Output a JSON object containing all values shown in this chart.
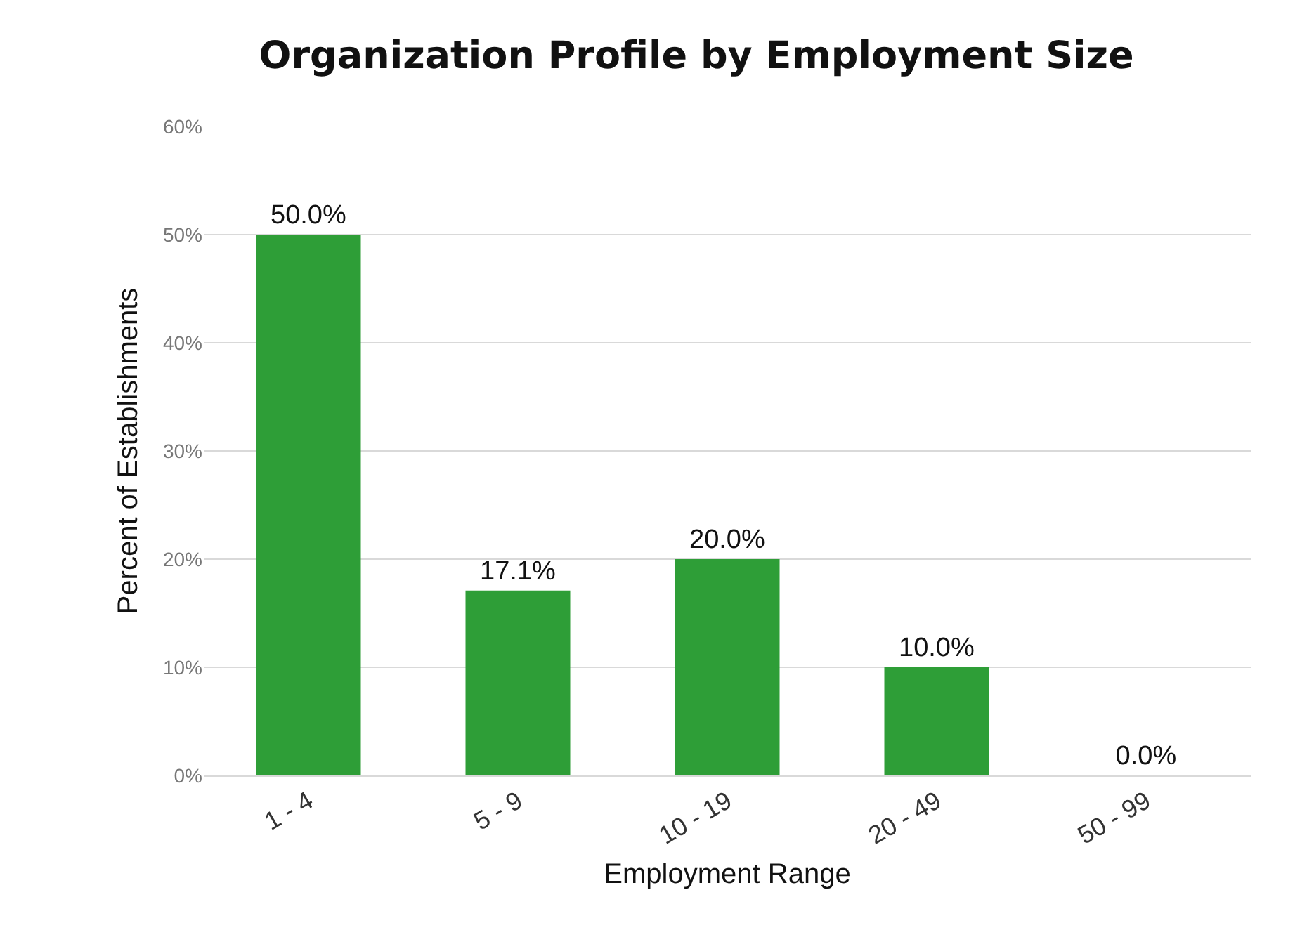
{
  "chart_data": {
    "type": "bar",
    "title": "Organization Profile by Employment Size",
    "xlabel": "Employment Range",
    "ylabel": "Percent of Establishments",
    "categories": [
      "1 - 4",
      "5 - 9",
      "10 - 19",
      "20 - 49",
      "50 - 99"
    ],
    "values": [
      50.0,
      17.1,
      20.0,
      10.0,
      0.0
    ],
    "value_labels": [
      "50.0%",
      "17.1%",
      "20.0%",
      "10.0%",
      "0.0%"
    ],
    "color": "#2e9e37",
    "ylim": [
      0,
      60
    ],
    "yticks": [
      {
        "value": 0,
        "label": "0%"
      },
      {
        "value": 10,
        "label": "10%"
      },
      {
        "value": 20,
        "label": "20%"
      },
      {
        "value": 30,
        "label": "30%"
      },
      {
        "value": 40,
        "label": "40%"
      },
      {
        "value": 50,
        "label": "50%"
      },
      {
        "value": 60,
        "label": "60%"
      }
    ],
    "grid": "y",
    "legend": false
  }
}
